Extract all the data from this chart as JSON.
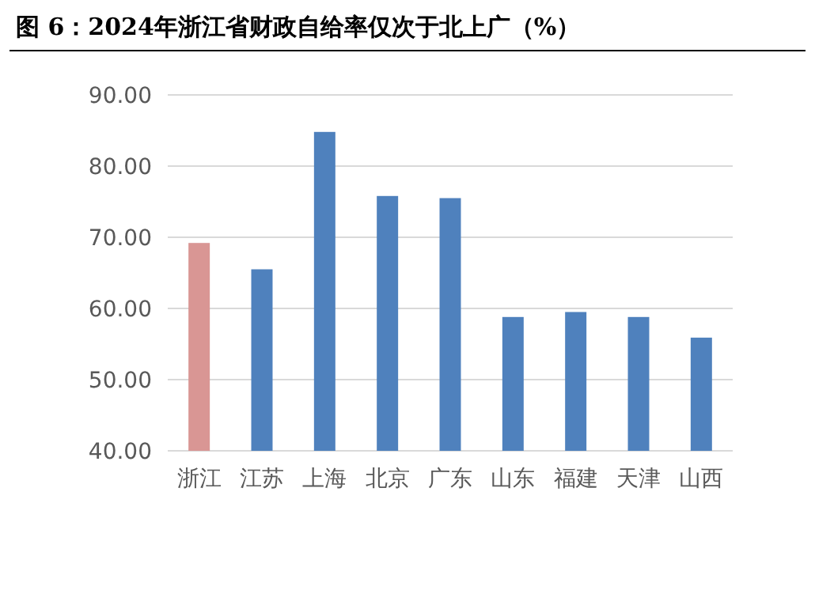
{
  "chart_data": {
    "type": "bar",
    "title": "图 6：2024年浙江省财政自给率仅次于北上广（%）",
    "categories": [
      "浙江",
      "江苏",
      "上海",
      "北京",
      "广东",
      "山东",
      "福建",
      "天津",
      "山西"
    ],
    "values": [
      69.2,
      65.5,
      84.8,
      75.8,
      75.5,
      58.8,
      59.5,
      58.8,
      55.9
    ],
    "colors": [
      "#d99694",
      "#4f81bd",
      "#4f81bd",
      "#4f81bd",
      "#4f81bd",
      "#4f81bd",
      "#4f81bd",
      "#4f81bd",
      "#4f81bd"
    ],
    "ylim": [
      40,
      90
    ],
    "yticks": [
      {
        "value": 40,
        "label": "40.00"
      },
      {
        "value": 50,
        "label": "50.00"
      },
      {
        "value": 60,
        "label": "60.00"
      },
      {
        "value": 70,
        "label": "70.00"
      },
      {
        "value": 80,
        "label": "80.00"
      },
      {
        "value": 90,
        "label": "90.00"
      }
    ],
    "grid": "y"
  }
}
